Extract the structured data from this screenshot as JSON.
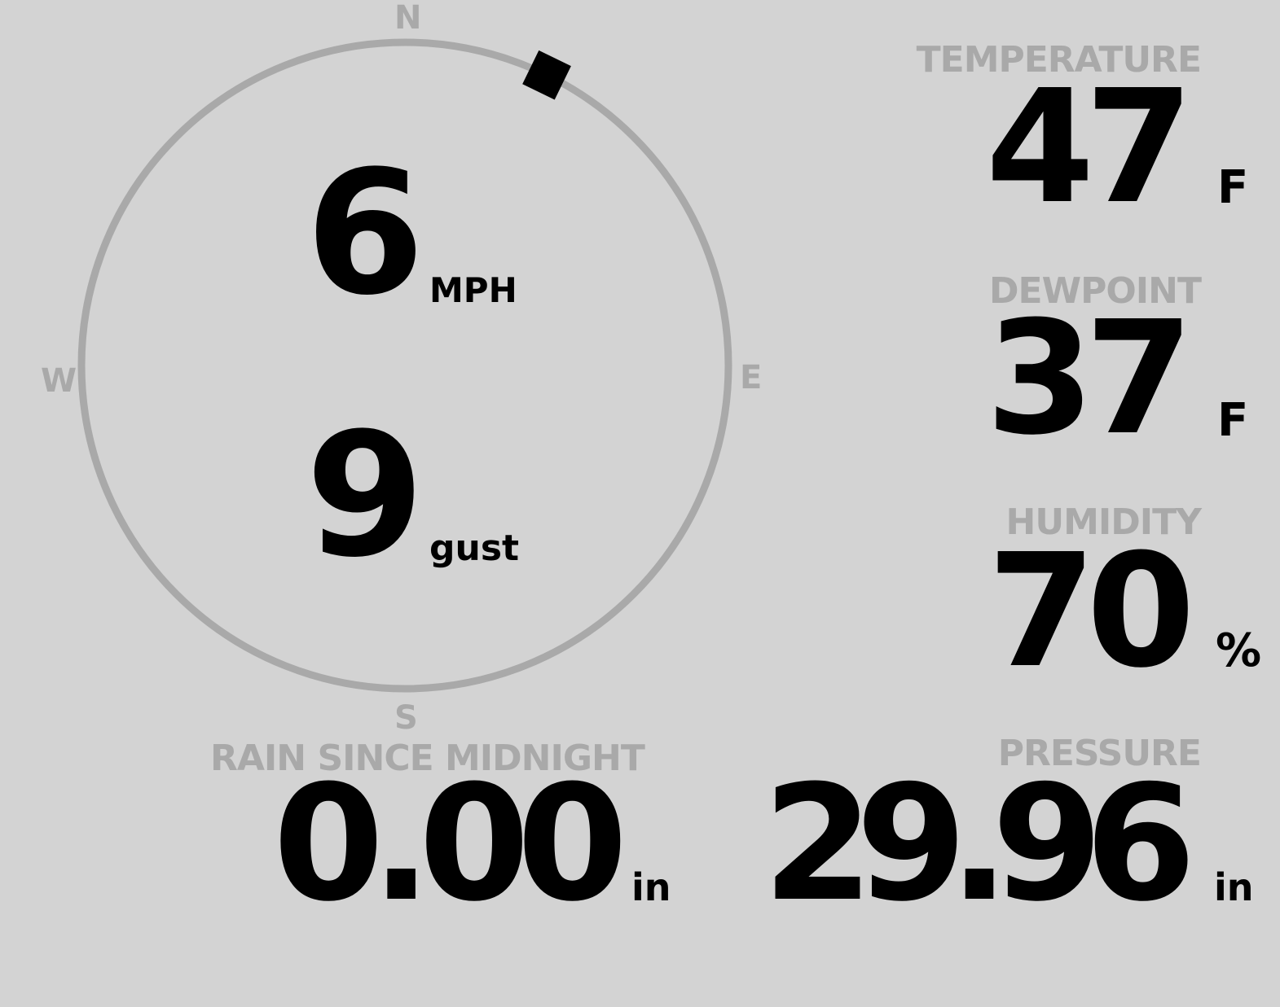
{
  "colors": {
    "background": "#d3d3d3",
    "ring": "#a9a9a9",
    "label": "#a9a9a9",
    "value": "#000000"
  },
  "wind": {
    "cardinals": {
      "n": "N",
      "e": "E",
      "s": "S",
      "w": "W"
    },
    "direction_deg": 26,
    "speed": "6",
    "speed_unit": "MPH",
    "gust": "9",
    "gust_unit": "gust"
  },
  "temperature": {
    "label": "TEMPERATURE",
    "value": "47",
    "unit": "F"
  },
  "dewpoint": {
    "label": "DEWPOINT",
    "value": "37",
    "unit": "F"
  },
  "humidity": {
    "label": "HUMIDITY",
    "value": "70",
    "unit": "%"
  },
  "rain": {
    "label": "RAIN SINCE MIDNIGHT",
    "value": "0.00",
    "unit": "in"
  },
  "pressure": {
    "label": "PRESSURE",
    "value": "29.96",
    "unit": "in"
  }
}
